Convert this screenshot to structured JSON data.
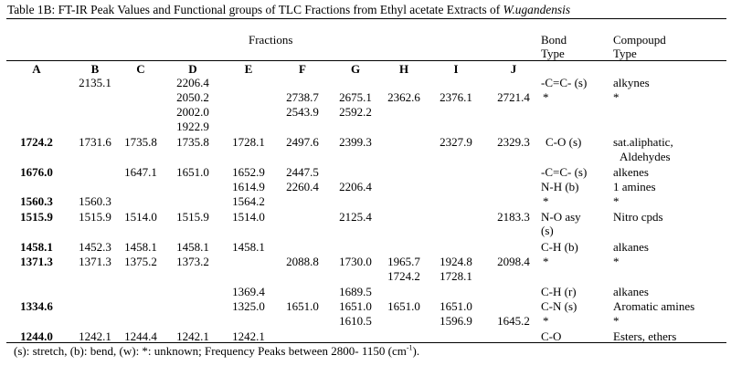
{
  "table": {
    "caption_prefix": "Table 1B: FT-IR Peak Values and Functional groups of TLC Fractions from Ethyl acetate Extracts of ",
    "caption_species": "W.ugandensis",
    "fractions_header": "Fractions",
    "bond_header": [
      "Bond",
      "Type"
    ],
    "compound_header": [
      "Compoupd",
      "Type"
    ],
    "columns": [
      "A",
      "B",
      "C",
      "D",
      "E",
      "F",
      "G",
      "H",
      "I",
      "J"
    ],
    "rows": [
      {
        "A": "",
        "B": "2135.1",
        "C": "",
        "D": "2206.4",
        "E": "",
        "F": "",
        "G": "",
        "H": "",
        "I": "",
        "J": "",
        "bond": "-C=C- (s)",
        "compound": "alkynes"
      },
      {
        "A": "",
        "B": "",
        "C": "",
        "D": "2050.2",
        "E": "",
        "F": "2738.7",
        "G": "2675.1",
        "H": "2362.6",
        "I": "2376.1",
        "J": "2721.4",
        "bond": "*",
        "compound": "*"
      },
      {
        "A": "",
        "B": "",
        "C": "",
        "D": "2002.0",
        "E": "",
        "F": "2543.9",
        "G": "2592.2",
        "H": "",
        "I": "",
        "J": "",
        "bond": "",
        "compound": ""
      },
      {
        "A": "",
        "B": "",
        "C": "",
        "D": "1922.9",
        "E": "",
        "F": "",
        "G": "",
        "H": "",
        "I": "",
        "J": "",
        "bond": "",
        "compound": ""
      },
      {
        "A": "1724.2",
        "B": "1731.6",
        "C": "1735.8",
        "D": "1735.8",
        "E": "1728.1",
        "F": "2497.6",
        "G": "2399.3",
        "H": "",
        "I": "2327.9",
        "J": "2329.3",
        "bond": "C-O (s)",
        "compound": "sat.aliphatic,"
      },
      {
        "A": "",
        "B": "",
        "C": "",
        "D": "",
        "E": "",
        "F": "",
        "G": "",
        "H": "",
        "I": "",
        "J": "",
        "bond": "",
        "compound": "Aldehydes"
      },
      {
        "A": "1676.0",
        "B": "",
        "C": "1647.1",
        "D": "1651.0",
        "E": "1652.9",
        "F": "2447.5",
        "G": "",
        "H": "",
        "I": "",
        "J": "",
        "bond": "-C=C- (s)",
        "compound": "alkenes"
      },
      {
        "A": "",
        "B": "",
        "C": "",
        "D": "",
        "E": "1614.9",
        "F": "2260.4",
        "G": "2206.4",
        "H": "",
        "I": "",
        "J": "",
        "bond": "N-H (b)",
        "compound": "1 amines"
      },
      {
        "A": "1560.3",
        "B": "1560.3",
        "C": "",
        "D": "",
        "E": "1564.2",
        "F": "",
        "G": "",
        "H": "",
        "I": "",
        "J": "",
        "bond": "*",
        "compound": "*"
      },
      {
        "A": "1515.9",
        "B": "1515.9",
        "C": "1514.0",
        "D": "1515.9",
        "E": "1514.0",
        "F": "",
        "G": "2125.4",
        "H": "",
        "I": "",
        "J": "2183.3",
        "bond": "N-O asy",
        "compound": "Nitro cpds"
      },
      {
        "A": "",
        "B": "",
        "C": "",
        "D": "",
        "E": "",
        "F": "",
        "G": "",
        "H": "",
        "I": "",
        "J": "",
        "bond": "(s)",
        "compound": ""
      },
      {
        "A": "1458.1",
        "B": "1452.3",
        "C": "1458.1",
        "D": "1458.1",
        "E": "1458.1",
        "F": "",
        "G": "",
        "H": "",
        "I": "",
        "J": "",
        "bond": "C-H (b)",
        "compound": "alkanes"
      },
      {
        "A": "1371.3",
        "B": "1371.3",
        "C": "1375.2",
        "D": "1373.2",
        "E": "",
        "F": "2088.8",
        "G": "1730.0",
        "H": "1965.7",
        "I": "1924.8",
        "J": "2098.4",
        "bond": "*",
        "compound": "*"
      },
      {
        "A": "",
        "B": "",
        "C": "",
        "D": "",
        "E": "",
        "F": "",
        "G": "",
        "H": "1724.2",
        "I": "1728.1",
        "J": "",
        "bond": "",
        "compound": ""
      },
      {
        "A": "",
        "B": "",
        "C": "",
        "D": "",
        "E": "1369.4",
        "F": "",
        "G": "1689.5",
        "H": "",
        "I": "",
        "J": "",
        "bond": "C-H (r)",
        "compound": "alkanes"
      },
      {
        "A": "1334.6",
        "B": "",
        "C": "",
        "D": "",
        "E": "1325.0",
        "F": "1651.0",
        "G": "1651.0",
        "H": "1651.0",
        "I": "1651.0",
        "J": "",
        "bond": "C-N (s)",
        "compound": "Aromatic amines"
      },
      {
        "A": "",
        "B": "",
        "C": "",
        "D": "",
        "E": "",
        "F": "",
        "G": "1610.5",
        "H": "",
        "I": "1596.9",
        "J": "1645.2",
        "bond": "*",
        "compound": "*"
      },
      {
        "A": "1244.0",
        "B": "1242.1",
        "C": "1244.4",
        "D": "1242.1",
        "E": "1242.1",
        "F": "",
        "G": "",
        "H": "",
        "I": "",
        "J": "",
        "bond": "C-O",
        "compound": "Esters, ethers"
      }
    ],
    "footnote_text": "(s): stretch, (b): bend,   (w):  *: unknown; Frequency Peaks between 2800- 1150 (cm",
    "footnote_sup": "-1",
    "footnote_end": ")."
  }
}
